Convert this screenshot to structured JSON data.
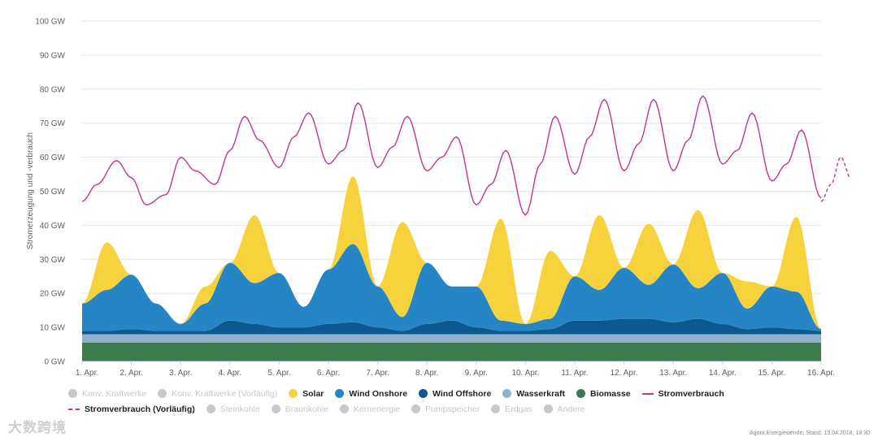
{
  "chart_data": {
    "type": "area",
    "stacked": true,
    "y_axis_title": "Stromerzeugung und -verbrauch",
    "y_ticks": [
      "0 GW",
      "10 GW",
      "20 GW",
      "30 GW",
      "40 GW",
      "50 GW",
      "60 GW",
      "70 GW",
      "80 GW",
      "90 GW",
      "100 GW"
    ],
    "ylim": [
      0,
      100
    ],
    "x_ticks": [
      "1. Apr.",
      "2. Apr.",
      "3. Apr.",
      "4. Apr.",
      "5. Apr.",
      "6. Apr.",
      "7. Apr.",
      "8. Apr.",
      "9. Apr.",
      "10. Apr.",
      "11. Apr.",
      "12. Apr.",
      "13. Apr.",
      "14. Apr.",
      "15. Apr.",
      "16. Apr."
    ],
    "x_unit": "days since 1. Apr.",
    "xlim": [
      0,
      15
    ],
    "grid": true,
    "series": [
      {
        "name": "Biomasse",
        "color": "#3d7a4e",
        "x": [
          0,
          15
        ],
        "values": [
          5.5,
          5.5
        ]
      },
      {
        "name": "Wasserkraft",
        "color": "#8fb1cc",
        "x": [
          0,
          15
        ],
        "values": [
          2.5,
          2.5
        ]
      },
      {
        "name": "Wind Offshore",
        "color": "#0a5a91",
        "x": [
          0,
          0.5,
          1,
          1.5,
          2,
          2.5,
          3,
          3.5,
          4,
          4.5,
          5,
          5.5,
          6,
          6.5,
          7,
          7.5,
          8,
          8.5,
          9,
          9.5,
          10,
          10.5,
          11,
          11.5,
          12,
          12.5,
          13,
          13.5,
          14,
          14.5,
          15
        ],
        "values": [
          1,
          1,
          1.5,
          1,
          1,
          1,
          4,
          3,
          2,
          2,
          3,
          3.5,
          2,
          1,
          3,
          4,
          2,
          1,
          1,
          1.5,
          4,
          4,
          4.5,
          4.5,
          3.5,
          4.5,
          3,
          1.5,
          2,
          1.5,
          1
        ]
      },
      {
        "name": "Wind Onshore",
        "color": "#2585c5",
        "x": [
          0,
          0.5,
          1,
          1.5,
          2,
          2.5,
          3,
          3.5,
          4,
          4.5,
          5,
          5.5,
          6,
          6.5,
          7,
          7.5,
          8,
          8.5,
          9,
          9.5,
          10,
          10.5,
          11,
          11.5,
          12,
          12.5,
          13,
          13.5,
          14,
          14.5,
          15
        ],
        "values": [
          8,
          12,
          16,
          8,
          2,
          8,
          17,
          12,
          16,
          6,
          16,
          23,
          12,
          4,
          18,
          10,
          12,
          3,
          2,
          3,
          13,
          9,
          15,
          10,
          17,
          9,
          15,
          6,
          12,
          11,
          0.5
        ]
      },
      {
        "name": "Solar",
        "color": "#f6d23c",
        "x": [
          0,
          0.5,
          1,
          1.5,
          2,
          2.5,
          3,
          3.5,
          4,
          4.5,
          5,
          5.5,
          6,
          6.5,
          7,
          7.5,
          8,
          8.5,
          9,
          9.5,
          10,
          10.5,
          11,
          11.5,
          12,
          12.5,
          13,
          13.5,
          14,
          14.5,
          15
        ],
        "values": [
          0,
          14,
          0,
          0,
          0,
          5,
          0,
          20,
          0,
          0,
          0,
          20,
          0,
          28,
          0,
          0,
          0,
          30,
          0,
          20,
          0,
          22,
          0,
          18,
          0,
          23,
          0,
          8,
          0,
          22,
          0
        ]
      },
      {
        "name": "Stromverbrauch",
        "color": "#c1368f",
        "type": "line",
        "x": [
          0,
          0.3,
          0.7,
          1,
          1.3,
          1.7,
          2,
          2.3,
          2.7,
          3,
          3.3,
          3.6,
          4,
          4.3,
          4.6,
          5,
          5.3,
          5.6,
          6,
          6.3,
          6.6,
          7,
          7.3,
          7.6,
          8,
          8.3,
          8.6,
          9,
          9.3,
          9.6,
          10,
          10.3,
          10.6,
          11,
          11.3,
          11.6,
          12,
          12.3,
          12.6,
          13,
          13.3,
          13.6,
          14,
          14.3,
          14.6,
          15
        ],
        "values": [
          47,
          52,
          59,
          54,
          46,
          49,
          60,
          56,
          52,
          62,
          72,
          65,
          57,
          66,
          73,
          58,
          62,
          76,
          57,
          63,
          72,
          56,
          60,
          66,
          46,
          52,
          62,
          43,
          58,
          72,
          55,
          66,
          77,
          56,
          64,
          77,
          56,
          65,
          78,
          58,
          62,
          73,
          53,
          58,
          68,
          48
        ]
      },
      {
        "name": "Stromverbrauch (Vorläufig)",
        "color": "#c1368f",
        "type": "line",
        "dashed": true,
        "x": [
          15,
          15.2,
          15.4,
          15.6
        ],
        "values": [
          47,
          52,
          60,
          54
        ]
      }
    ]
  },
  "legend": {
    "row1": [
      {
        "label": "Konv. Kraftwerke",
        "color": "#c8c8c8",
        "active": false
      },
      {
        "label": "Konv. Kraftwerke (Vorläufig)",
        "color": "#c8c8c8",
        "active": false
      },
      {
        "label": "Solar",
        "color": "#f6d23c",
        "active": true
      },
      {
        "label": "Wind Onshore",
        "color": "#2585c5",
        "active": true
      },
      {
        "label": "Wind Offshore",
        "color": "#0a5a91",
        "active": true
      },
      {
        "label": "Wasserkraft",
        "color": "#8fb1cc",
        "active": true
      },
      {
        "label": "Biomasse",
        "color": "#3d7a4e",
        "active": true
      },
      {
        "label": "Stromverbrauch",
        "color": "#c1368f",
        "active": true
      }
    ],
    "row2": [
      {
        "label": "Stromverbrauch (Vorläufig)",
        "color": "#c1368f",
        "active": true
      },
      {
        "label": "Steinkohle",
        "color": "#c8c8c8",
        "active": false
      },
      {
        "label": "Braunkohle",
        "color": "#c8c8c8",
        "active": false
      },
      {
        "label": "Kernenergie",
        "color": "#c8c8c8",
        "active": false
      },
      {
        "label": "Pumpspeicher",
        "color": "#c8c8c8",
        "active": false
      },
      {
        "label": "Erdgas",
        "color": "#c8c8c8",
        "active": false
      },
      {
        "label": "Andere",
        "color": "#c8c8c8",
        "active": false
      }
    ]
  },
  "credit": "Agora Energiewende; Stand: 15.04.2018, 18:30",
  "watermark": "大数跨境"
}
